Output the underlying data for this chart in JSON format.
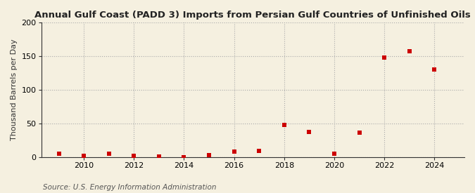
{
  "title": "Annual Gulf Coast (PADD 3) Imports from Persian Gulf Countries of Unfinished Oils",
  "ylabel": "Thousand Barrels per Day",
  "source": "Source: U.S. Energy Information Administration",
  "years": [
    2009,
    2010,
    2011,
    2012,
    2013,
    2014,
    2015,
    2016,
    2017,
    2018,
    2019,
    2020,
    2021,
    2022,
    2023,
    2024
  ],
  "values": [
    5.0,
    2.0,
    5.0,
    2.0,
    1.0,
    0.0,
    3.0,
    8.0,
    9.0,
    48.0,
    37.0,
    5.0,
    36.0,
    148.0,
    157.0,
    130.0
  ],
  "marker_color": "#cc0000",
  "marker": "s",
  "marker_size": 5,
  "background_color": "#f5f0e0",
  "plot_bg_color": "#f5f0e0",
  "grid_color": "#aaaaaa",
  "axis_color": "#333333",
  "ylim": [
    0,
    200
  ],
  "yticks": [
    0,
    50,
    100,
    150,
    200
  ],
  "xlim": [
    2008.3,
    2025.2
  ],
  "xticks": [
    2010,
    2012,
    2014,
    2016,
    2018,
    2020,
    2022,
    2024
  ],
  "title_fontsize": 9.5,
  "label_fontsize": 8,
  "tick_fontsize": 8,
  "source_fontsize": 7.5
}
